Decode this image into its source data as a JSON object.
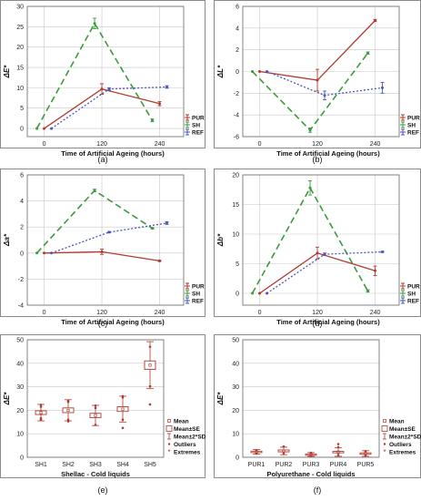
{
  "colors": {
    "pur": "#b03a2e",
    "sh": "#3c9a3c",
    "ref": "#4a56b8",
    "box": "#b03a2e",
    "axis": "#666666",
    "grid": "#c8c8c8"
  },
  "chart_data": [
    {
      "id": "a",
      "type": "line",
      "panel_label": "(a)",
      "ylabel": "ΔE*",
      "xlabel": "Time of Artificial Ageing (hours)",
      "x": [
        0,
        120,
        240
      ],
      "xticks": [
        "0",
        "120",
        "240"
      ],
      "ylim": [
        -2,
        30
      ],
      "yticks": [
        0,
        5,
        10,
        15,
        20,
        25,
        30
      ],
      "grid": true,
      "legend": "bottom-right",
      "series": [
        {
          "name": "PUR",
          "values": [
            0,
            9.7,
            6.1
          ],
          "err": [
            0,
            1.3,
            0.5
          ]
        },
        {
          "name": "SH",
          "values": [
            0,
            25.8,
            2.0
          ],
          "err": [
            0,
            1.3,
            0.3
          ]
        },
        {
          "name": "REF",
          "values": [
            0,
            9.7,
            10.2
          ],
          "err": [
            0,
            0.3,
            0.3
          ]
        }
      ]
    },
    {
      "id": "b",
      "type": "line",
      "panel_label": "(b)",
      "ylabel": "ΔL*",
      "xlabel": "Time of Artificial Ageing (hours)",
      "x": [
        0,
        120,
        240
      ],
      "xticks": [
        "0",
        "120",
        "240"
      ],
      "ylim": [
        -6,
        6
      ],
      "yticks": [
        -6,
        -4,
        -2,
        0,
        2,
        4,
        6
      ],
      "grid": true,
      "legend": "bottom-right",
      "series": [
        {
          "name": "PUR",
          "values": [
            0,
            -0.8,
            4.7
          ],
          "err": [
            0,
            1.0,
            0.1
          ]
        },
        {
          "name": "SH",
          "values": [
            0,
            -5.4,
            1.7
          ],
          "err": [
            0,
            0.2,
            0.1
          ]
        },
        {
          "name": "REF",
          "values": [
            0,
            -2.2,
            -1.5
          ],
          "err": [
            0,
            0.4,
            0.5
          ]
        }
      ]
    },
    {
      "id": "c",
      "type": "line",
      "panel_label": "(c)",
      "ylabel": "Δa*",
      "xlabel": "Time of Artificial Ageing (hours)",
      "x": [
        0,
        120,
        240
      ],
      "xticks": [
        "0",
        "120",
        "240"
      ],
      "ylim": [
        -4,
        6
      ],
      "yticks": [
        -4,
        -2,
        0,
        2,
        4,
        6
      ],
      "grid": true,
      "legend": "bottom-right",
      "series": [
        {
          "name": "PUR",
          "values": [
            0,
            0.1,
            -0.6
          ],
          "err": [
            0,
            0.2,
            0.05
          ]
        },
        {
          "name": "SH",
          "values": [
            0,
            4.8,
            1.9
          ],
          "err": [
            0,
            0.1,
            0.05
          ]
        },
        {
          "name": "REF",
          "values": [
            0,
            1.6,
            2.3
          ],
          "err": [
            0,
            0.05,
            0.1
          ]
        }
      ]
    },
    {
      "id": "d",
      "type": "line",
      "panel_label": "(d)",
      "ylabel": "Δb*",
      "xlabel": "Time of Artificial Ageing (hours)",
      "x": [
        0,
        120,
        240
      ],
      "xticks": [
        "0",
        "120",
        "240"
      ],
      "ylim": [
        -2,
        20
      ],
      "yticks": [
        0,
        5,
        10,
        15,
        20
      ],
      "grid": true,
      "legend": "bottom-right",
      "series": [
        {
          "name": "PUR",
          "values": [
            0,
            6.8,
            3.8
          ],
          "err": [
            0,
            1.0,
            0.8
          ]
        },
        {
          "name": "SH",
          "values": [
            0,
            17.8,
            0.4
          ],
          "err": [
            0,
            1.2,
            0.2
          ]
        },
        {
          "name": "REF",
          "values": [
            0,
            6.6,
            7.0
          ],
          "err": [
            0,
            0.2,
            0.1
          ]
        }
      ]
    },
    {
      "id": "e",
      "type": "box",
      "panel_label": "(e)",
      "ylabel": "ΔE*",
      "xlabel": "Shellac - Cold liquids",
      "categories": [
        "SH1",
        "SH2",
        "SH3",
        "SH4",
        "SH5"
      ],
      "ylim": [
        0,
        50
      ],
      "yticks": [
        0,
        10,
        20,
        30,
        40,
        50
      ],
      "grid": true,
      "legend": "right",
      "legend_entries": [
        "Mean",
        "Mean±SE",
        "Mean±2*SD",
        "Outliers",
        "Extremes"
      ],
      "boxes": [
        {
          "mean": 19.0,
          "se": 0.8,
          "sd2": 3.5,
          "points": [
            16.0,
            16.6,
            21.5,
            22.3
          ]
        },
        {
          "mean": 20.0,
          "se": 1.0,
          "sd2": 4.5,
          "points": [
            15.3,
            16.0,
            23.6,
            24.0
          ]
        },
        {
          "mean": 17.8,
          "se": 0.9,
          "sd2": 4.3,
          "points": [
            13.8,
            21.0,
            22.0
          ]
        },
        {
          "mean": 20.5,
          "se": 1.0,
          "sd2": 5.5,
          "points": [
            12.5,
            16.0,
            25.5,
            26.0
          ]
        },
        {
          "mean": 39.2,
          "se": 1.8,
          "sd2": 10.0,
          "points": [
            22.5,
            30.2,
            47.0
          ]
        }
      ]
    },
    {
      "id": "f",
      "type": "box",
      "panel_label": "(f)",
      "ylabel": "ΔE*",
      "xlabel": "Polyurethane - Cold liquids",
      "categories": [
        "PUR1",
        "PUR2",
        "PUR3",
        "PUR4",
        "PUR5"
      ],
      "ylim": [
        0,
        50
      ],
      "yticks": [
        0,
        10,
        20,
        30,
        40,
        50
      ],
      "grid": true,
      "legend": "right",
      "legend_entries": [
        "Mean",
        "Mean±SE",
        "Mean±2*SD",
        "Outliers",
        "Extremes"
      ],
      "boxes": [
        {
          "mean": 2.3,
          "se": 0.3,
          "sd2": 1.0,
          "points": [
            1.6,
            2.9
          ]
        },
        {
          "mean": 2.7,
          "se": 0.4,
          "sd2": 1.6,
          "points": [
            1.7,
            4.6
          ]
        },
        {
          "mean": 1.2,
          "se": 0.2,
          "sd2": 0.8,
          "points": [
            0.6,
            1.9
          ]
        },
        {
          "mean": 2.2,
          "se": 0.3,
          "sd2": 1.8,
          "points": [
            1.0,
            4.3,
            5.6
          ]
        },
        {
          "mean": 1.6,
          "se": 0.3,
          "sd2": 1.2,
          "points": [
            0.8,
            2.6
          ]
        }
      ]
    }
  ]
}
